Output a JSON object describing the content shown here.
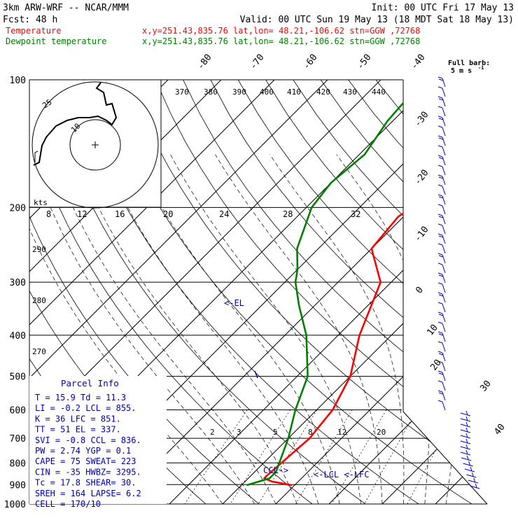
{
  "header": {
    "model": "3km ARW-WRF -- NCAR/MMM",
    "init": "Init: 00 UTC Fri 17 May 13",
    "fcst": "Fcst:   48 h",
    "valid": "Valid: 00 UTC Sun 19 May 13 (18 MDT Sat 18 May 13)"
  },
  "legend": {
    "temp": {
      "name": "Temperature",
      "info": "x,y=251.43,835.76   lat,lon= 48.21,-106.62   stn=GGW ,72768",
      "color": "#ff0000"
    },
    "dew": {
      "name": "Dewpoint temperature",
      "info": "x,y=251.43,835.76   lat,lon= 48.21,-106.62   stn=GGW ,72768",
      "color": "#008000"
    }
  },
  "barb_title": {
    "line1": "Full barb:",
    "line2": "5 m s",
    "sup": "-1"
  },
  "parcel": {
    "title": "Parcel Info",
    "rows": [
      "T  =    15.9 Td =  11.3",
      "LI =    -0.2 LCL =  855.",
      "K  =      36 LFC = 851.",
      "TT =      51 EL  =  337.",
      "SVI =   -0.8 CCL =  836.",
      "PW =    2.74 YGP =   0.1",
      "CAPE =    75 SWEAT=  223",
      "CIN =    -35 HWBZ= 3295.",
      "Tc =    17.8 SHEAR=  30.",
      "SREH =   164 LAPSE=  6.2",
      "CELL = 170/10"
    ]
  },
  "chart_data": {
    "type": "line",
    "title": "",
    "ylabel": "",
    "y_scale": "log-pressure (hPa)",
    "ylim": [
      1000,
      100
    ],
    "xlim": [
      -40,
      40
    ],
    "pressure_ticks": [
      "100",
      "200",
      "300",
      "400",
      "500",
      "600",
      "700",
      "800",
      "900",
      "1000"
    ],
    "temp_ticks_top": [
      "-80",
      "-70",
      "-60",
      "-50",
      "-40"
    ],
    "temp_ticks_right": [
      "-30",
      "-20",
      "-10",
      "0",
      "10",
      "20",
      "30",
      "40"
    ],
    "theta_labels": [
      "370",
      "380",
      "390",
      "400",
      "410",
      "420",
      "430",
      "440"
    ],
    "theta_labels_left": [
      "290",
      "280",
      "270"
    ],
    "mixing_ratio_labels": [
      "2",
      "3",
      "5",
      "8",
      "12",
      "20"
    ],
    "hodo_speed_labels": [
      "8",
      "12",
      "16",
      "20",
      "24",
      "28",
      "32"
    ],
    "hodo_unit": "kts",
    "hodo_ring_labels": [
      "25",
      "10"
    ],
    "series": [
      {
        "name": "Temperature",
        "color": "#ff0000",
        "points": [
          [
            903,
            -0.5
          ],
          [
            885,
            -5
          ],
          [
            870,
            -7
          ],
          [
            855,
            -7
          ],
          [
            700,
            -6
          ],
          [
            600,
            -7
          ],
          [
            500,
            -10
          ],
          [
            400,
            -16
          ],
          [
            300,
            -22
          ],
          [
            250,
            -30
          ],
          [
            210,
            -31
          ],
          [
            200,
            -30
          ],
          [
            175,
            -30
          ],
          [
            150,
            -32
          ],
          [
            125,
            -35
          ],
          [
            100,
            -40
          ]
        ]
      },
      {
        "name": "Dewpoint temperature",
        "color": "#008000",
        "points": [
          [
            903,
            -9
          ],
          [
            870,
            -6
          ],
          [
            840,
            -6
          ],
          [
            700,
            -10
          ],
          [
            600,
            -14
          ],
          [
            500,
            -18
          ],
          [
            400,
            -26
          ],
          [
            340,
            -33
          ],
          [
            300,
            -38
          ],
          [
            280,
            -40
          ],
          [
            250,
            -44
          ],
          [
            200,
            -49
          ],
          [
            175,
            -50
          ],
          [
            150,
            -49
          ],
          [
            125,
            -51
          ],
          [
            100,
            -52
          ]
        ]
      }
    ],
    "annotations": {
      "el": "<-EL",
      "ccl": "CCL->",
      "lcl_lfc": "<-LCL <-LFC"
    }
  }
}
